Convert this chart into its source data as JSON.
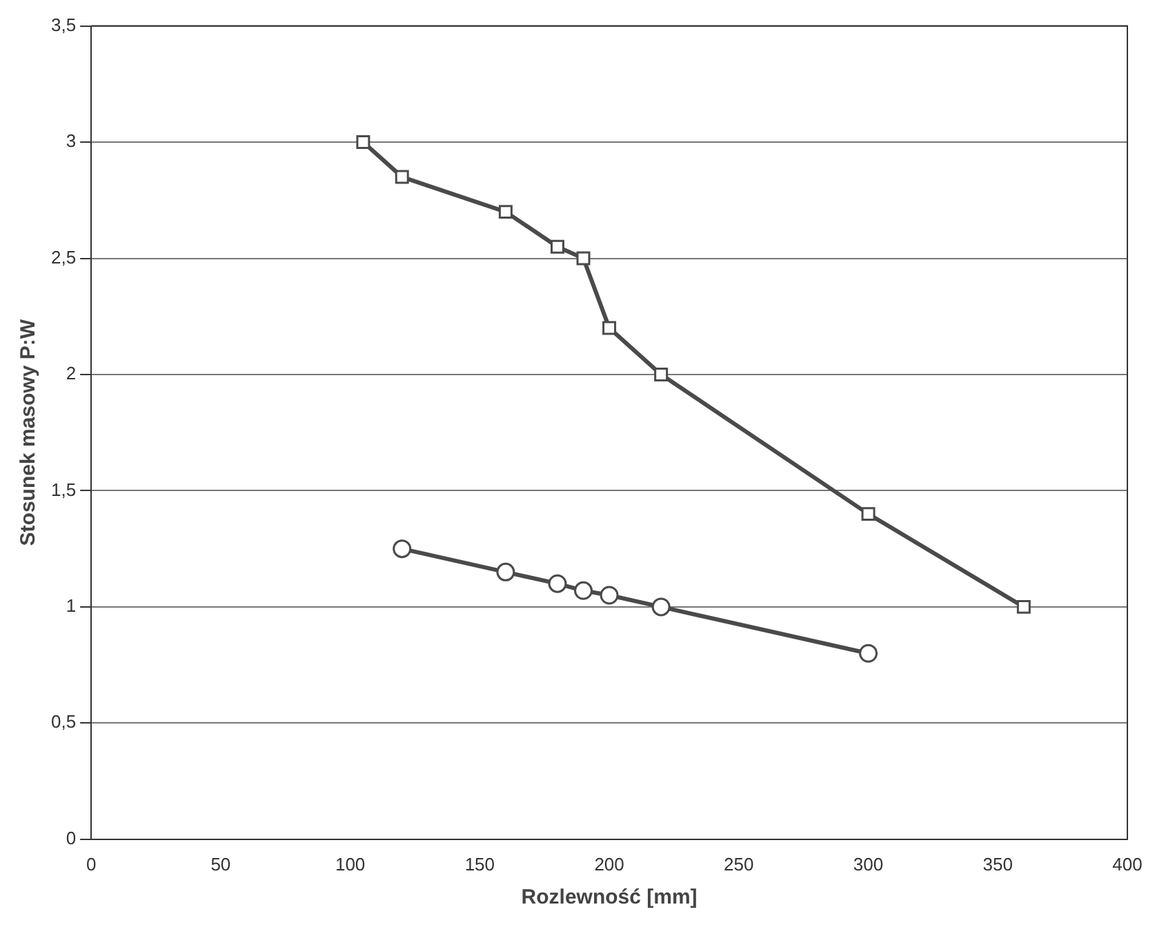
{
  "chart_data": {
    "type": "line",
    "xlabel": "Rozlewność [mm]",
    "ylabel": "Stosunek masowy P:W",
    "series": [
      {
        "color": "#4a4a4a",
        "marker": "circle",
        "x": [
          120,
          160,
          180,
          190,
          200,
          220,
          300
        ],
        "values": [
          1.25,
          1.15,
          1.1,
          1.07,
          1.05,
          1.0,
          0.8
        ]
      },
      {
        "color": "#4a4a4a",
        "marker": "square",
        "x": [
          105,
          120,
          160,
          180,
          190,
          200,
          220,
          300,
          360
        ],
        "values": [
          3.0,
          2.85,
          2.7,
          2.55,
          2.5,
          2.2,
          2.0,
          1.4,
          1.0
        ]
      }
    ],
    "xlim": [
      0,
      400
    ],
    "xticks": [
      0,
      50,
      100,
      150,
      200,
      250,
      300,
      350,
      400
    ],
    "ylim": [
      0,
      3.5
    ],
    "yticks": [
      0,
      {
        "value": 0.5,
        "label": "0,5"
      },
      1,
      {
        "value": 1.5,
        "label": "1,5"
      },
      2,
      {
        "value": 2.5,
        "label": "2,5"
      },
      3,
      {
        "value": 3.5,
        "label": "3,5"
      }
    ],
    "grid": "y",
    "line_style": "solid"
  }
}
